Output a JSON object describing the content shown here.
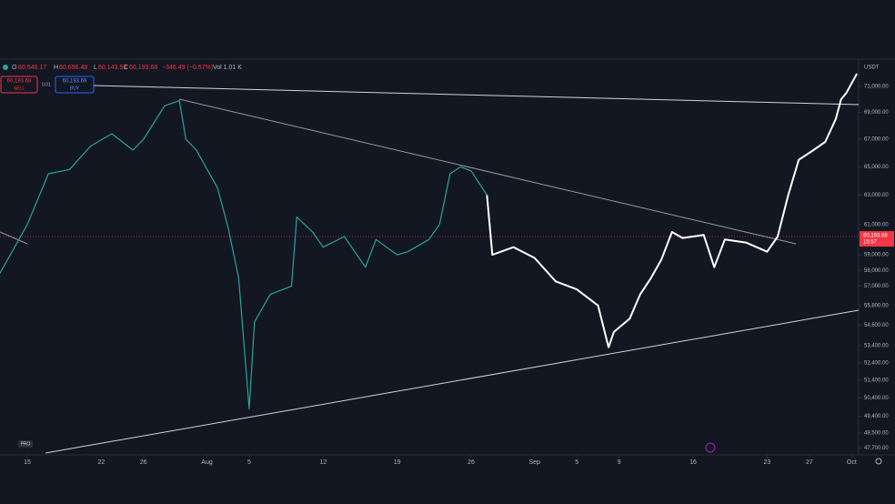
{
  "header": {
    "open_label": "O",
    "open": "60,540.17",
    "high_label": "H",
    "high": "60,696.48",
    "low_label": "L",
    "low": "60,143.53",
    "close_label": "C",
    "close": "60,193.68",
    "change": "−346.49 (−0.57%)",
    "volume": "Vol 1.01 K"
  },
  "order": {
    "sell_price": "60,193.68",
    "sell": "SELL",
    "spread": "0.01",
    "buy_price": "60,193.69",
    "buy": "BUY"
  },
  "currency": "USDT",
  "price_tag": {
    "price": "60,193.68",
    "countdown": "15:57"
  },
  "badge": "PRO",
  "chart_data": {
    "type": "line",
    "log": true,
    "current_price": 60193.68,
    "x": [
      -2.6,
      0,
      2,
      4,
      6,
      8,
      10,
      11,
      13,
      14.4,
      15,
      16,
      18,
      19,
      20,
      21,
      21.5,
      23,
      25,
      25.5,
      27,
      28,
      30,
      32,
      33,
      35,
      36,
      38,
      39,
      40,
      41,
      42,
      43.5,
      44,
      46,
      48,
      50,
      52,
      54,
      55,
      55.5,
      57,
      58,
      59,
      60,
      61,
      62,
      64,
      65,
      66,
      68,
      70,
      71,
      72,
      73,
      74,
      75.5,
      76.5,
      77,
      77.5,
      78.5
    ],
    "series": [
      {
        "color": "#26a69a",
        "values": [
          57800,
          61000,
          64500,
          64800,
          66500,
          67400,
          66200,
          67000,
          69500,
          69900,
          67000,
          66200,
          63500,
          60800,
          57500,
          49800,
          54800,
          56500,
          57000,
          61500,
          60500,
          59500,
          60200,
          58200,
          60000,
          59000,
          59200,
          60000,
          61000,
          64500,
          65000,
          64700,
          63000,
          null,
          null,
          null,
          null,
          null,
          null,
          null,
          null,
          null,
          null,
          null,
          null,
          null,
          null,
          null,
          null,
          null,
          null,
          null,
          null,
          null,
          null,
          null,
          null,
          null,
          null,
          null,
          null
        ]
      },
      {
        "color": "#ffffff",
        "values": [
          null,
          null,
          null,
          null,
          null,
          null,
          null,
          null,
          null,
          null,
          null,
          null,
          null,
          null,
          null,
          null,
          null,
          null,
          null,
          null,
          null,
          null,
          null,
          null,
          null,
          null,
          null,
          null,
          null,
          null,
          null,
          null,
          63000,
          59000,
          59500,
          58800,
          57300,
          56800,
          55800,
          53300,
          54200,
          55000,
          56500,
          57500,
          58700,
          60500,
          60100,
          60300,
          58200,
          60000,
          59800,
          59200,
          60200,
          63000,
          65500,
          66000,
          66800,
          68500,
          70000,
          70500,
          72000
        ]
      }
    ],
    "xlim": [
      -2.58,
      78.66
    ],
    "xticks": [
      {
        "value": 0,
        "label": "15"
      },
      {
        "value": 7,
        "label": "22"
      },
      {
        "value": 11,
        "label": "26"
      },
      {
        "value": 17,
        "label": "Aug"
      },
      {
        "value": 21,
        "label": "5"
      },
      {
        "value": 28,
        "label": "12"
      },
      {
        "value": 35,
        "label": "19"
      },
      {
        "value": 42,
        "label": "26"
      },
      {
        "value": 48,
        "label": "Sep"
      },
      {
        "value": 52,
        "label": "5"
      },
      {
        "value": 56,
        "label": "9"
      },
      {
        "value": 63,
        "label": "16"
      },
      {
        "value": 70,
        "label": "23"
      },
      {
        "value": 74,
        "label": "27"
      },
      {
        "value": 78,
        "label": "Oct"
      }
    ],
    "ylim": [
      47350,
      73163
    ],
    "yticks": [
      {
        "value": 71000,
        "label": "71,000.00"
      },
      {
        "value": 69000,
        "label": "69,000.00"
      },
      {
        "value": 67000,
        "label": "67,000.00"
      },
      {
        "value": 65000,
        "label": "65,000.00"
      },
      {
        "value": 63000,
        "label": "63,000.00"
      },
      {
        "value": 61000,
        "label": "61,000.00"
      },
      {
        "value": 59000,
        "label": "59,000.00"
      },
      {
        "value": 58000,
        "label": "58,000.00"
      },
      {
        "value": 57000,
        "label": "57,000.00"
      },
      {
        "value": 55800,
        "label": "55,800.00"
      },
      {
        "value": 54600,
        "label": "54,600.00"
      },
      {
        "value": 53400,
        "label": "53,400.00"
      },
      {
        "value": 52400,
        "label": "52,400.00"
      },
      {
        "value": 51400,
        "label": "51,400.00"
      },
      {
        "value": 50400,
        "label": "50,400.00"
      },
      {
        "value": 49400,
        "label": "49,400.00"
      },
      {
        "value": 48500,
        "label": "48,500.00"
      },
      {
        "value": 47700,
        "label": "47,700.00"
      }
    ]
  }
}
